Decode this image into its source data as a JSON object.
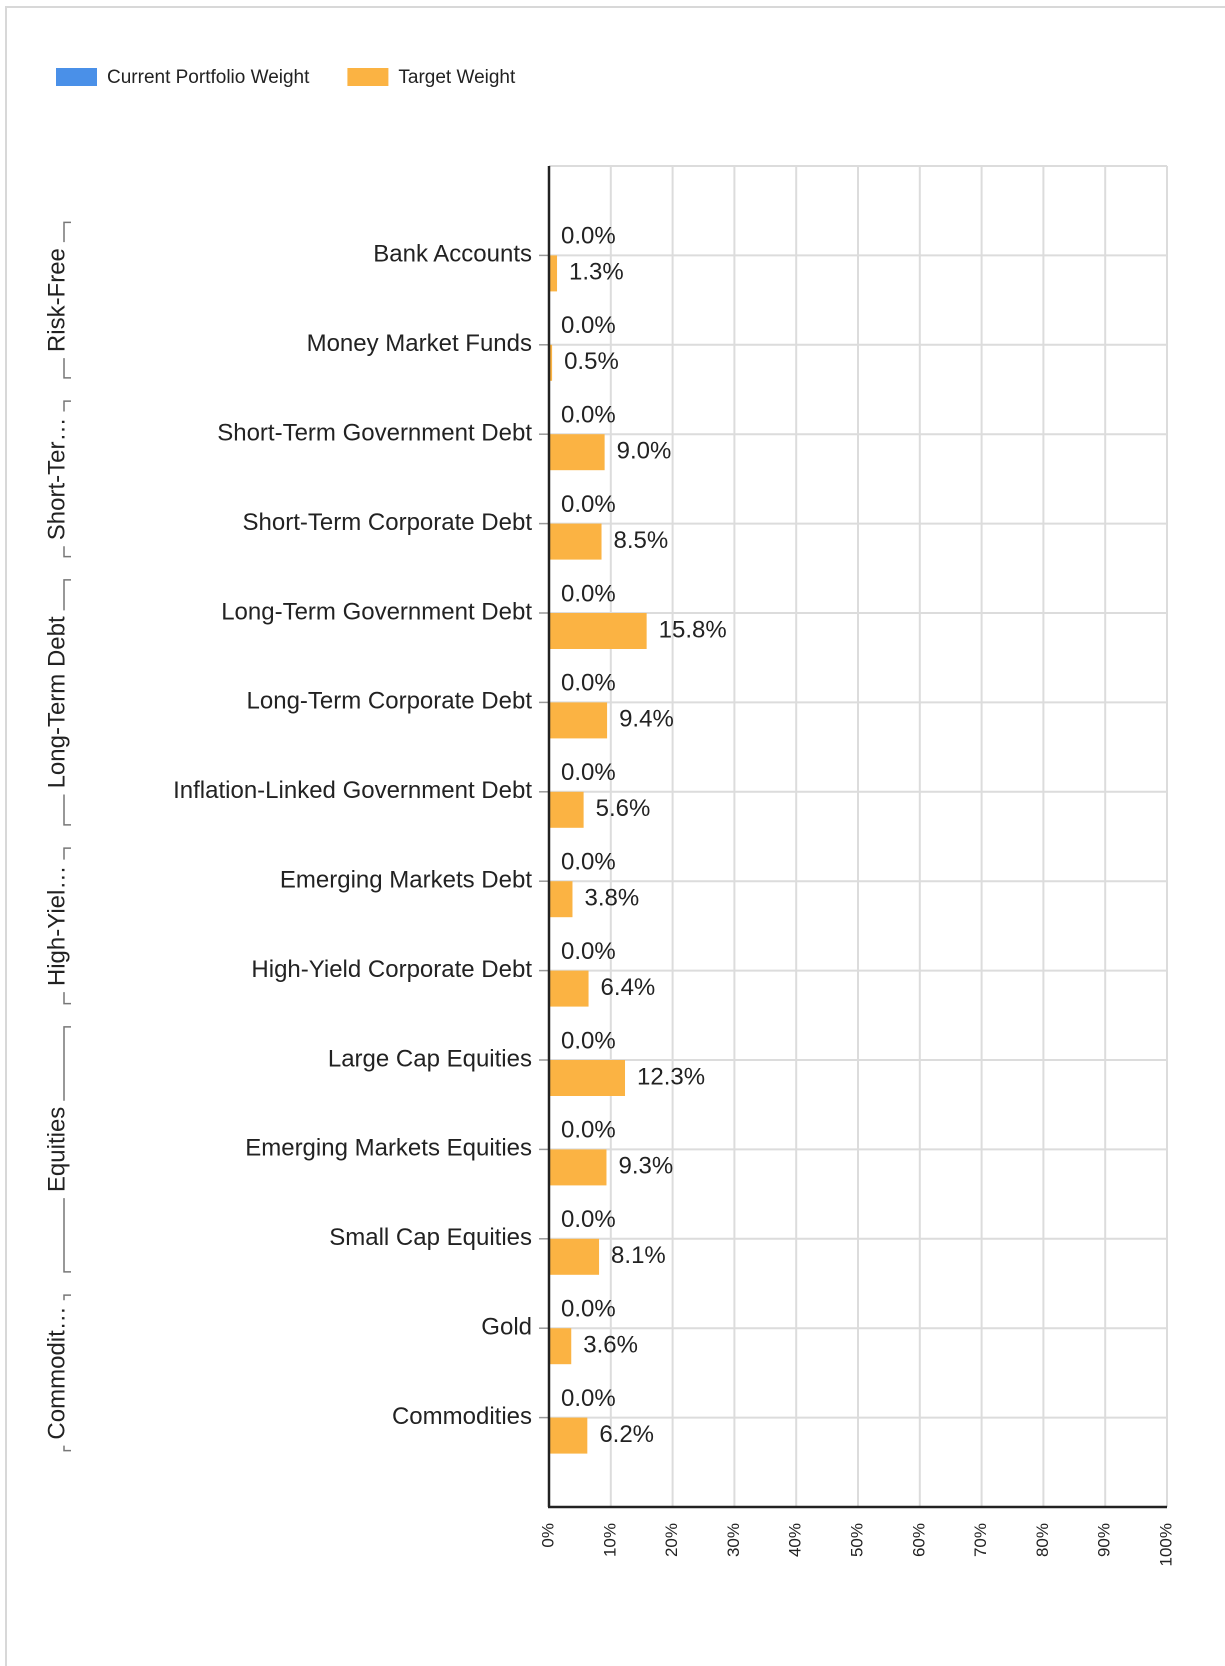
{
  "chart_data": {
    "type": "hbar",
    "categories": [
      "Bank Accounts",
      "Money Market Funds",
      "Short-Term Government Debt",
      "Short-Term Corporate Debt",
      "Long-Term Government Debt",
      "Long-Term Corporate Debt",
      "Inflation-Linked Government Debt",
      "Emerging Markets Debt",
      "High-Yield Corporate Debt",
      "Large Cap Equities",
      "Emerging Markets Equities",
      "Small Cap Equities",
      "Gold",
      "Commodities"
    ],
    "series": [
      {
        "name": "Current Portfolio Weight",
        "color": "#4a90e8",
        "values": [
          0,
          0,
          0,
          0,
          0,
          0,
          0,
          0,
          0,
          0,
          0,
          0,
          0,
          0
        ],
        "value_labels": [
          "0.0%",
          "0.0%",
          "0.0%",
          "0.0%",
          "0.0%",
          "0.0%",
          "0.0%",
          "0.0%",
          "0.0%",
          "0.0%",
          "0.0%",
          "0.0%",
          "0.0%",
          "0.0%"
        ]
      },
      {
        "name": "Target Weight",
        "color": "#fbb343",
        "values": [
          1.3,
          0.5,
          9.0,
          8.5,
          15.8,
          9.4,
          5.6,
          3.8,
          6.4,
          12.3,
          9.3,
          8.1,
          3.6,
          6.2
        ],
        "value_labels": [
          "1.3%",
          "0.5%",
          "9.0%",
          "8.5%",
          "15.8%",
          "9.4%",
          "5.6%",
          "3.8%",
          "6.4%",
          "12.3%",
          "9.3%",
          "8.1%",
          "3.6%",
          "6.2%"
        ]
      }
    ],
    "groups": [
      {
        "label": "Risk-Free",
        "categories": [
          "Bank Accounts",
          "Money Market Funds"
        ]
      },
      {
        "label": "Short-Ter…",
        "categories": [
          "Short-Term Government Debt",
          "Short-Term Corporate Debt"
        ]
      },
      {
        "label": "Long-Term Debt",
        "categories": [
          "Long-Term Government Debt",
          "Long-Term Corporate Debt",
          "Inflation-Linked Government Debt"
        ]
      },
      {
        "label": "High-Yiel…",
        "categories": [
          "Emerging Markets Debt",
          "High-Yield Corporate Debt"
        ]
      },
      {
        "label": "Equities",
        "categories": [
          "Large Cap Equities",
          "Emerging Markets Equities",
          "Small Cap Equities"
        ]
      },
      {
        "label": "Commodit…",
        "categories": [
          "Gold",
          "Commodities"
        ]
      }
    ],
    "xlim": [
      0,
      100
    ],
    "xticks": [
      {
        "value": 0,
        "label": "0%"
      },
      {
        "value": 10,
        "label": "10%"
      },
      {
        "value": 20,
        "label": "20%"
      },
      {
        "value": 30,
        "label": "30%"
      },
      {
        "value": 40,
        "label": "40%"
      },
      {
        "value": 50,
        "label": "50%"
      },
      {
        "value": 60,
        "label": "60%"
      },
      {
        "value": 70,
        "label": "70%"
      },
      {
        "value": 80,
        "label": "80%"
      },
      {
        "value": 90,
        "label": "90%"
      },
      {
        "value": 100,
        "label": "100%"
      }
    ],
    "grid": true
  }
}
